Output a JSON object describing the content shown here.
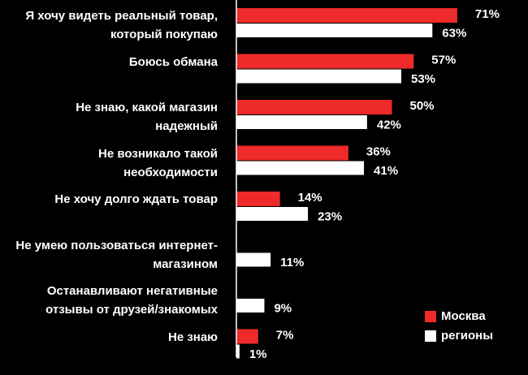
{
  "chart_data": {
    "type": "barh",
    "categories": [
      "Я хочу видеть реальный товар, который покупаю",
      "Боюсь обмана",
      "Не знаю, какой магазин надежный",
      "Не возникало такой необходимости",
      "Не хочу долго ждать товар",
      "Не умею пользоваться интернет-магазином",
      "Останавливают негативные отзывы от друзей/знакомых",
      "Не знаю"
    ],
    "series": [
      {
        "name": "Москва",
        "color": "#ee2a2a",
        "values": [
          71,
          57,
          50,
          36,
          14,
          null,
          null,
          7
        ],
        "value_labels": [
          "71%",
          "57%",
          "50%",
          "36%",
          "14%",
          null,
          null,
          "7%"
        ]
      },
      {
        "name": "регионы",
        "color": "#ffffff",
        "values": [
          63,
          53,
          42,
          41,
          23,
          11,
          9,
          1
        ],
        "value_labels": [
          "63%",
          "53%",
          "42%",
          "41%",
          "23%",
          "11%",
          "9%",
          "1%"
        ]
      }
    ],
    "xlim": [
      0,
      100
    ],
    "legend": "lower right"
  }
}
